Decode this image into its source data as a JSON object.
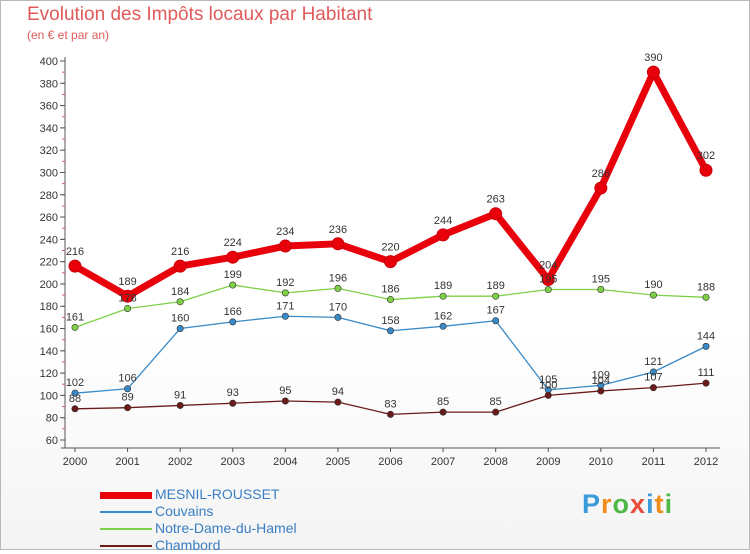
{
  "header": {
    "title": "Evolution des Impôts locaux par Habitant",
    "subtitle": "(en € et par an)"
  },
  "logo": {
    "text": "Proxiti",
    "letters": [
      "P",
      "r",
      "o",
      "x",
      "i",
      "t",
      "i"
    ],
    "colors": [
      "#3b9ad9",
      "#f08c1a",
      "#4fb948",
      "#e74c3c",
      "#3b9ad9",
      "#f08c1a",
      "#4fb948"
    ]
  },
  "chart_data": {
    "type": "line",
    "title": "Evolution des Impôts locaux par Habitant",
    "subtitle": "(en € et par an)",
    "xlabel": "",
    "ylabel": "",
    "ylim": [
      60,
      400
    ],
    "yticks": [
      60,
      80,
      100,
      120,
      140,
      160,
      180,
      200,
      220,
      240,
      260,
      280,
      300,
      320,
      340,
      360,
      380,
      400
    ],
    "grid": false,
    "legend_position": "bottom-left",
    "categories": [
      "2000",
      "2001",
      "2002",
      "2003",
      "2004",
      "2005",
      "2006",
      "2007",
      "2008",
      "2009",
      "2010",
      "2011",
      "2012"
    ],
    "series": [
      {
        "name": "MESNIL-ROUSSET",
        "color": "#e8000b",
        "emphasis": "thick",
        "values": [
          216,
          189,
          216,
          224,
          234,
          236,
          220,
          244,
          263,
          204,
          286,
          390,
          302
        ]
      },
      {
        "name": "Couvains",
        "color": "#3a8ac7",
        "emphasis": "thin",
        "values": [
          102,
          106,
          160,
          166,
          171,
          170,
          158,
          162,
          167,
          105,
          109,
          121,
          144
        ]
      },
      {
        "name": "Notre-Dame-du-Hamel",
        "color": "#7ed047",
        "emphasis": "thin",
        "values": [
          161,
          178,
          184,
          199,
          192,
          196,
          186,
          189,
          189,
          195,
          195,
          190,
          188
        ]
      },
      {
        "name": "Chambord",
        "color": "#6b1a1a",
        "emphasis": "thin",
        "values": [
          88,
          89,
          91,
          93,
          95,
          94,
          83,
          85,
          85,
          100,
          104,
          107,
          111
        ]
      }
    ]
  }
}
